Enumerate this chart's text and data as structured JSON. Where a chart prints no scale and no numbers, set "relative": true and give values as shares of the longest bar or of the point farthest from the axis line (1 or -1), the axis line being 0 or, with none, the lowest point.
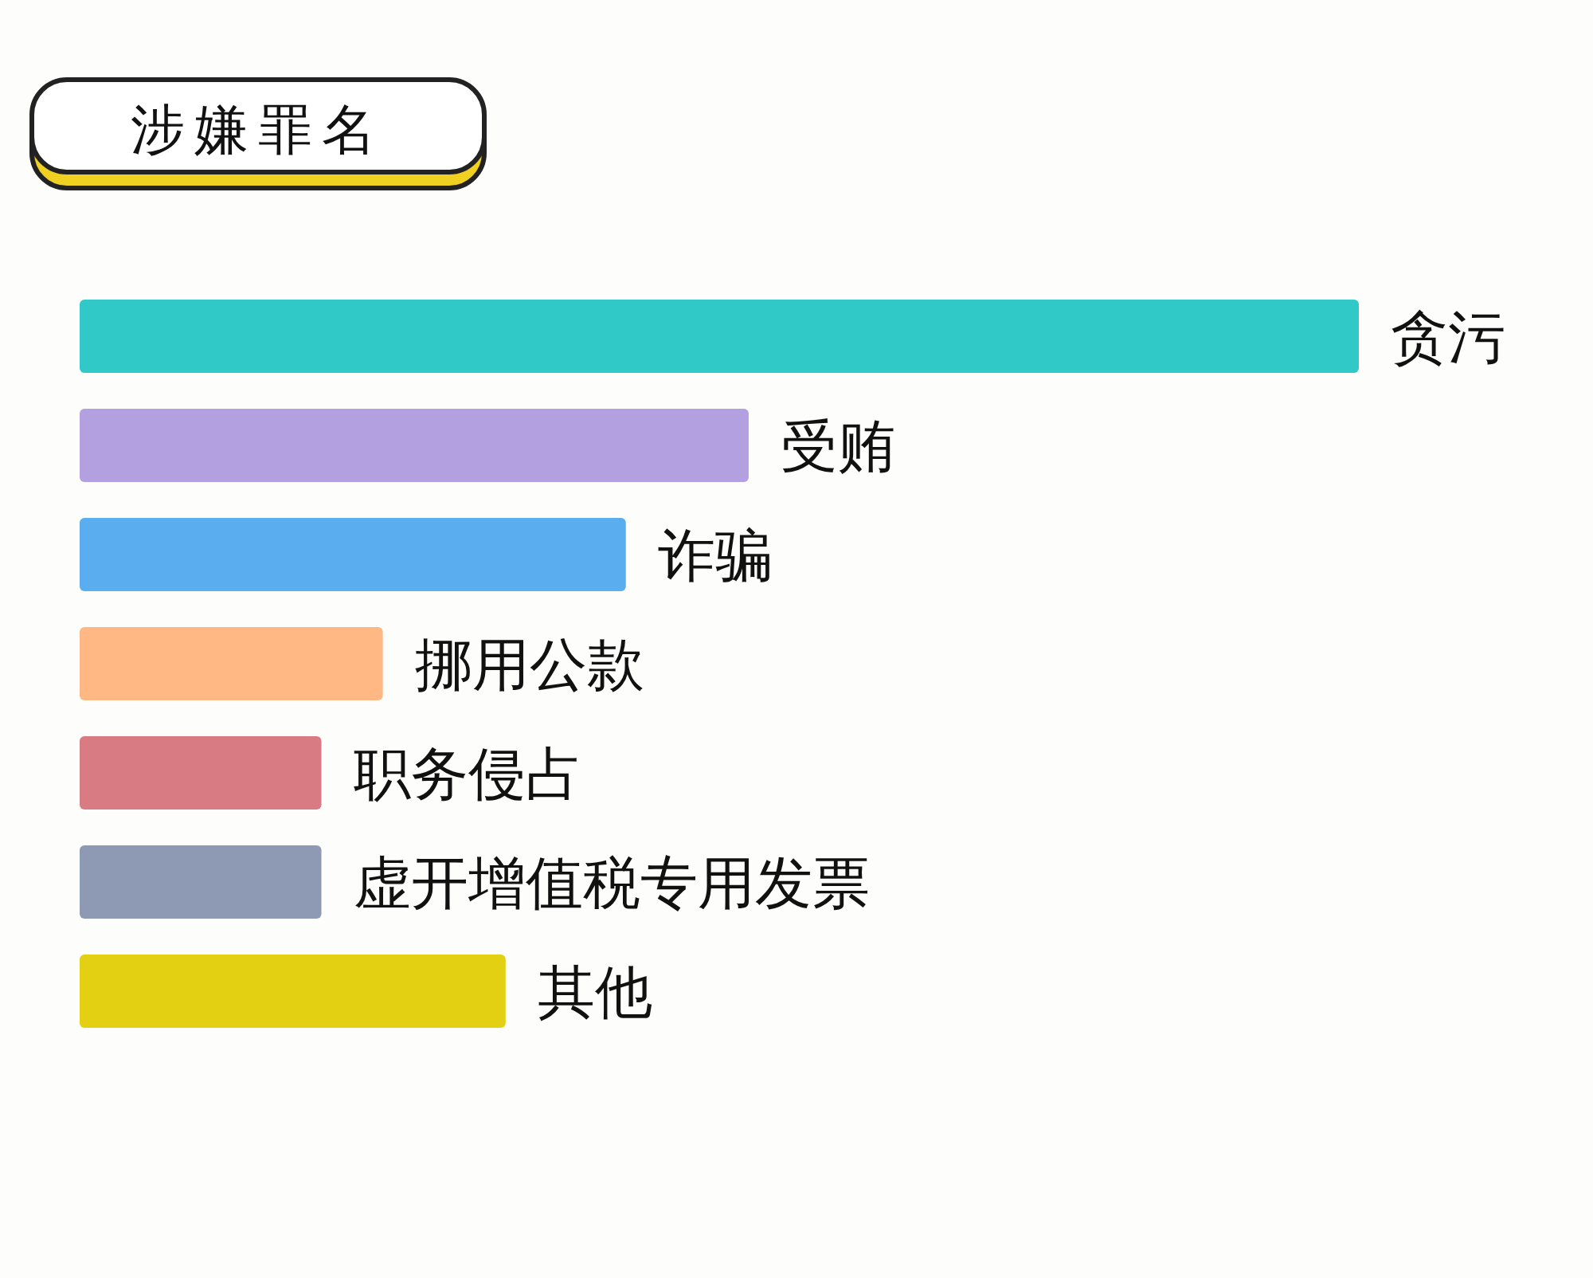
{
  "chart_data": {
    "type": "bar",
    "orientation": "horizontal",
    "relative": true,
    "title": "涉嫌罪名",
    "categories": [
      "贪污",
      "受贿",
      "诈骗",
      "挪用公款",
      "职务侵占",
      "虚开增值税专用发票",
      "其他"
    ],
    "values": [
      1,
      0.523,
      0.427,
      0.237,
      0.189,
      0.189,
      0.333
    ],
    "colors": [
      "#31c8c8",
      "#b3a0e0",
      "#5aaef0",
      "#ffb883",
      "#d87b82",
      "#8e9ab4",
      "#e3d012"
    ]
  }
}
